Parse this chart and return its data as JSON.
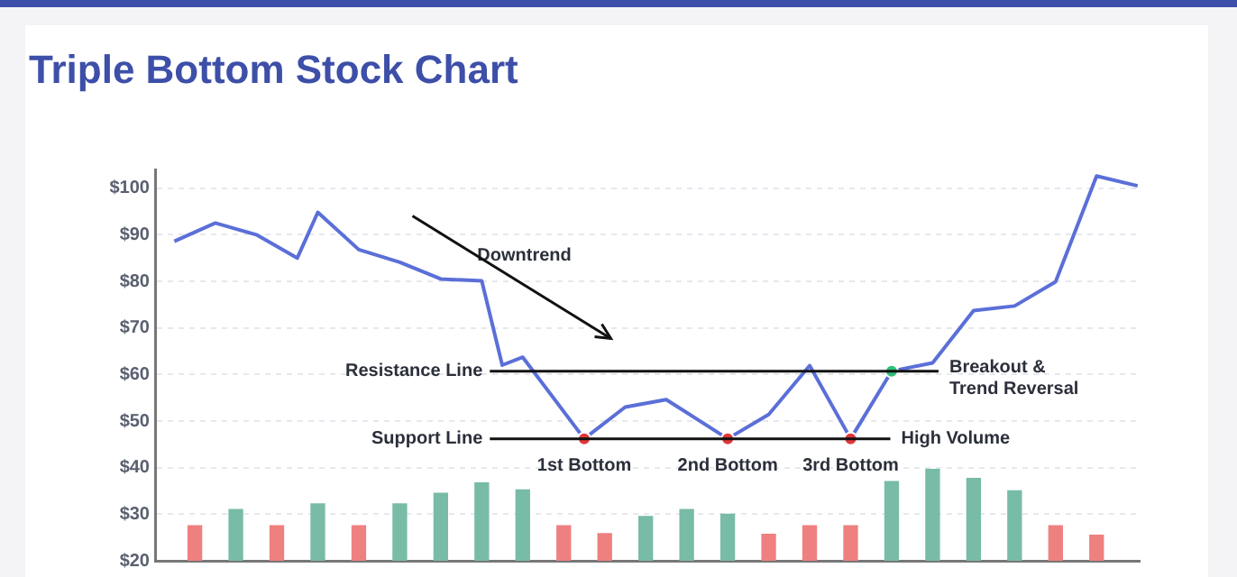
{
  "chart_data": {
    "type": "line",
    "title": "Triple Bottom Stock Chart",
    "categories": [
      null,
      null,
      null,
      null,
      null,
      null,
      null,
      null,
      null,
      null,
      null,
      null,
      null,
      null,
      null,
      null,
      null,
      null,
      null,
      null,
      null,
      null,
      null,
      null,
      null,
      null,
      null,
      null,
      null,
      null,
      null,
      null,
      null,
      null,
      null,
      null,
      null,
      null,
      null,
      null,
      null,
      null,
      null,
      null,
      null,
      null,
      null,
      null
    ],
    "ylim": [
      20,
      104
    ],
    "yticks": [
      {
        "value": 20,
        "label": "$20"
      },
      {
        "value": 30,
        "label": "$30"
      },
      {
        "value": 40,
        "label": "$40"
      },
      {
        "value": 50,
        "label": "$50"
      },
      {
        "value": 60,
        "label": "$60"
      },
      {
        "value": 70,
        "label": "$70"
      },
      {
        "value": 80,
        "label": "$80"
      },
      {
        "value": 90,
        "label": "$90"
      },
      {
        "value": 100,
        "label": "$100"
      }
    ],
    "grid": "y",
    "tick_labels": "y",
    "series": [
      {
        "type": "bar",
        "values": [
          null,
          27.5,
          null,
          31,
          null,
          27.5,
          null,
          32.2,
          null,
          27.5,
          null,
          32.2,
          null,
          34.5,
          null,
          36.7,
          null,
          35.2,
          null,
          27.5,
          null,
          25.8,
          null,
          29.5,
          null,
          31,
          null,
          30,
          null,
          25.7,
          null,
          27.5,
          null,
          27.5,
          null,
          37,
          null,
          39.6,
          null,
          37.7,
          null,
          35,
          null,
          27.5,
          null,
          25.5,
          null,
          null
        ],
        "colors": [
          null,
          "#ef8080",
          null,
          "#78bba7",
          null,
          "#ef8080",
          null,
          "#78bba7",
          null,
          "#ef8080",
          null,
          "#78bba7",
          null,
          "#78bba7",
          null,
          "#78bba7",
          null,
          "#78bba7",
          null,
          "#ef8080",
          null,
          "#ef8080",
          null,
          "#78bba7",
          null,
          "#78bba7",
          null,
          "#78bba7",
          null,
          "#ef8080",
          null,
          "#ef8080",
          null,
          "#ef8080",
          null,
          "#78bba7",
          null,
          "#78bba7",
          null,
          "#78bba7",
          null,
          "#78bba7",
          null,
          "#ef8080",
          null,
          "#ef8080",
          null,
          null
        ]
      },
      {
        "color": "#5b6fd8",
        "values": [
          88.6,
          null,
          92.5,
          null,
          90,
          null,
          85,
          94.8,
          null,
          86.8,
          null,
          84.1,
          null,
          80.5,
          null,
          80.1,
          62,
          63.7,
          null,
          null,
          46.2,
          null,
          53,
          null,
          54.6,
          null,
          null,
          46.2,
          null,
          51.4,
          null,
          61.9,
          null,
          46.2,
          null,
          60.7,
          null,
          62.5,
          null,
          73.7,
          null,
          74.7,
          null,
          79.9,
          null,
          102.6,
          null,
          100.5
        ]
      },
      {
        "type": "scatter",
        "values": [
          null,
          null,
          null,
          null,
          null,
          null,
          null,
          null,
          null,
          null,
          null,
          null,
          null,
          null,
          null,
          null,
          null,
          null,
          null,
          null,
          46.2,
          null,
          null,
          null,
          null,
          null,
          null,
          46.2,
          null,
          null,
          null,
          null,
          null,
          46.2,
          null,
          60.7,
          null,
          null,
          null,
          null,
          null,
          null,
          null,
          null,
          null,
          null,
          null,
          null
        ],
        "colors": [
          null,
          null,
          null,
          null,
          null,
          null,
          null,
          null,
          null,
          null,
          null,
          null,
          null,
          null,
          null,
          null,
          null,
          null,
          null,
          null,
          "#e0373a",
          null,
          null,
          null,
          null,
          null,
          null,
          "#e0373a",
          null,
          null,
          null,
          null,
          null,
          "#e0373a",
          null,
          "#2fbf7a",
          null,
          null,
          null,
          null,
          null,
          null,
          null,
          null,
          null,
          null,
          null,
          null
        ]
      }
    ],
    "ref_lines": [
      {
        "axis": "y",
        "value": 60.7,
        "label": "Resistance Line",
        "color": "#111111"
      },
      {
        "axis": "y",
        "value": 46.2,
        "label": "Support Line",
        "color": "#111111"
      }
    ],
    "annotations": [
      "Downtrend",
      "1st Bottom",
      "2nd Bottom",
      "3rd Bottom",
      "Breakout & Trend Reversal",
      "High Volume"
    ]
  }
}
